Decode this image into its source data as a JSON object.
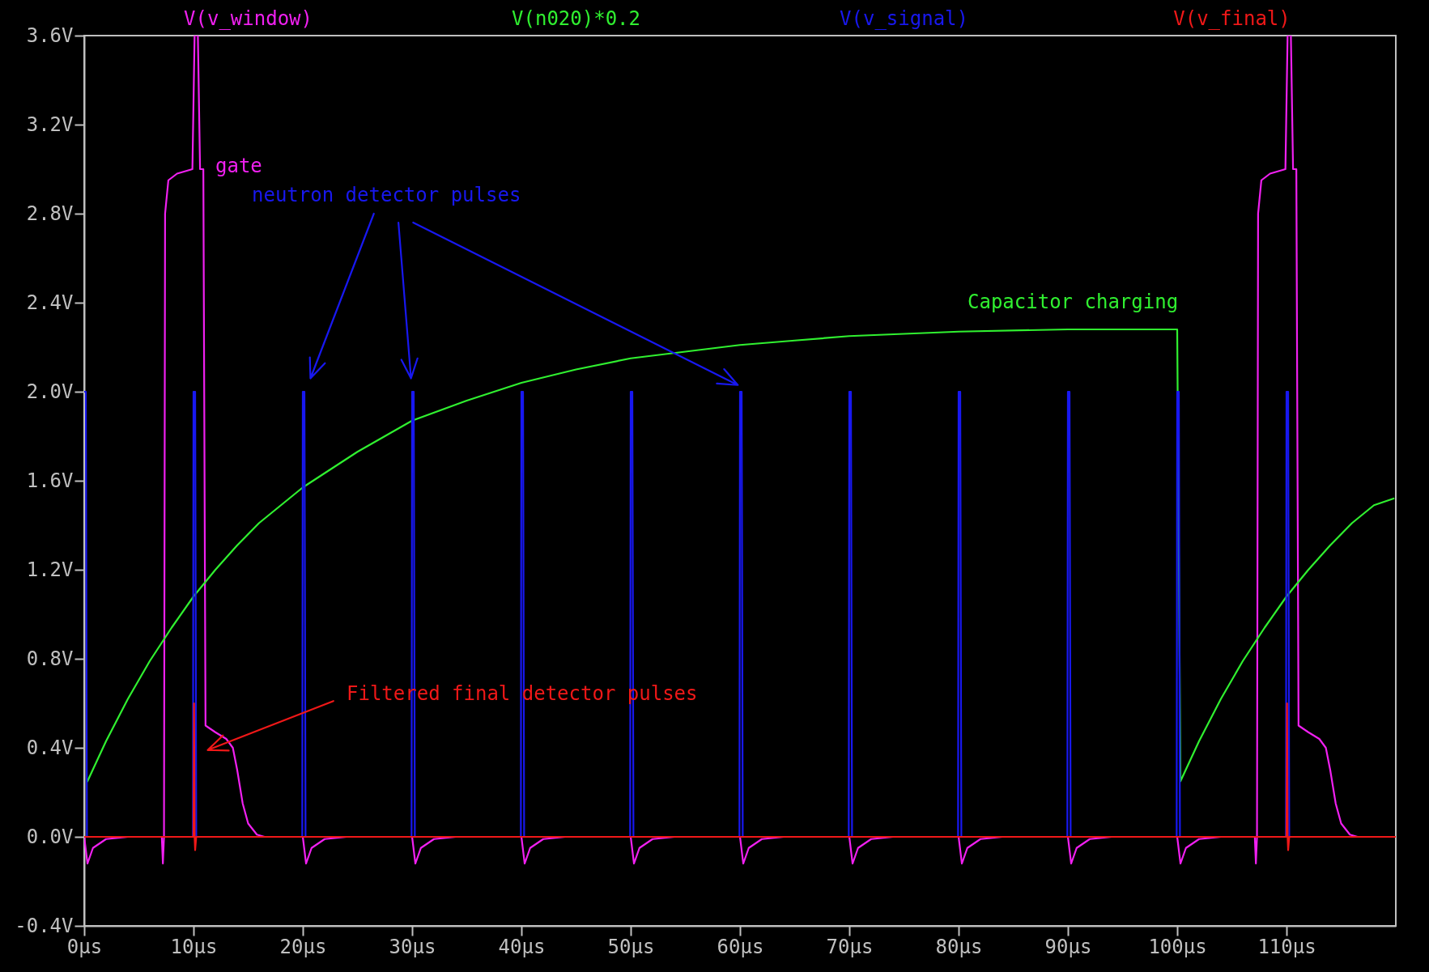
{
  "chart_data": {
    "type": "line",
    "legend": "top",
    "grid": false,
    "line_style": "solid",
    "marker": "none",
    "xlim": [
      0,
      120
    ],
    "ylim": [
      -0.4,
      3.6
    ],
    "xticks": [
      {
        "value": 0,
        "label": "0µs"
      },
      {
        "value": 10,
        "label": "10µs"
      },
      {
        "value": 20,
        "label": "20µs"
      },
      {
        "value": 30,
        "label": "30µs"
      },
      {
        "value": 40,
        "label": "40µs"
      },
      {
        "value": 50,
        "label": "50µs"
      },
      {
        "value": 60,
        "label": "60µs"
      },
      {
        "value": 70,
        "label": "70µs"
      },
      {
        "value": 80,
        "label": "80µs"
      },
      {
        "value": 90,
        "label": "90µs"
      },
      {
        "value": 100,
        "label": "100µs"
      },
      {
        "value": 110,
        "label": "110µs"
      }
    ],
    "yticks": [
      {
        "value": -0.4,
        "label": "-0.4V"
      },
      {
        "value": 0,
        "label": "0.0V"
      },
      {
        "value": 0.4,
        "label": "0.4V"
      },
      {
        "value": 0.8,
        "label": "0.8V"
      },
      {
        "value": 1.2,
        "label": "1.2V"
      },
      {
        "value": 1.6,
        "label": "1.6V"
      },
      {
        "value": 2,
        "label": "2.0V"
      },
      {
        "value": 2.4,
        "label": "2.4V"
      },
      {
        "value": 2.8,
        "label": "2.8V"
      },
      {
        "value": 3.2,
        "label": "3.2V"
      },
      {
        "value": 3.6,
        "label": "3.6V"
      }
    ],
    "series": [
      {
        "name": "V(v_window)",
        "color": "#f020f0",
        "x": [
          0,
          0.3,
          0.8,
          2,
          4,
          7.1,
          7.2,
          7.3,
          7.4,
          7.7,
          8.5,
          9.9,
          10.1,
          10.4,
          10.6,
          10.9,
          11.1,
          12,
          13,
          13.6,
          14,
          14.5,
          15,
          15.8,
          16.5,
          20,
          20.3,
          20.8,
          22,
          24,
          30,
          30.3,
          30.8,
          32,
          34,
          40,
          40.3,
          40.8,
          42,
          44,
          50,
          50.3,
          50.8,
          52,
          54,
          60,
          60.3,
          60.8,
          62,
          64,
          70,
          70.3,
          70.8,
          72,
          74,
          80,
          80.3,
          80.8,
          82,
          84,
          90,
          90.3,
          90.8,
          92,
          94,
          100,
          100.3,
          100.8,
          102,
          104,
          107.1,
          107.2,
          107.3,
          107.4,
          107.7,
          108.5,
          109.9,
          110.1,
          110.4,
          110.6,
          110.9,
          111.1,
          112,
          113,
          113.6,
          114,
          114.5,
          115,
          115.8,
          116.5,
          120
        ],
        "values": [
          0,
          -0.12,
          -0.05,
          -0.01,
          0,
          0,
          -0.12,
          0,
          2.8,
          2.95,
          2.98,
          3,
          3.6,
          3.6,
          3,
          3,
          0.5,
          0.47,
          0.44,
          0.4,
          0.3,
          0.15,
          0.06,
          0.01,
          0,
          0,
          -0.12,
          -0.05,
          -0.01,
          0,
          0,
          -0.12,
          -0.05,
          -0.01,
          0,
          0,
          -0.12,
          -0.05,
          -0.01,
          0,
          0,
          -0.12,
          -0.05,
          -0.01,
          0,
          0,
          -0.12,
          -0.05,
          -0.01,
          0,
          0,
          -0.12,
          -0.05,
          -0.01,
          0,
          0,
          -0.12,
          -0.05,
          -0.01,
          0,
          0,
          -0.12,
          -0.05,
          -0.01,
          0,
          0,
          -0.12,
          -0.05,
          -0.01,
          0,
          0,
          -0.12,
          0,
          2.8,
          2.95,
          2.98,
          3,
          3.6,
          3.6,
          3,
          3,
          0.5,
          0.47,
          0.44,
          0.4,
          0.3,
          0.15,
          0.06,
          0.01,
          0,
          0
        ]
      },
      {
        "name": "V(n020)*0.2",
        "color": "#30f030",
        "x": [
          0.3,
          2,
          4,
          6,
          8,
          10,
          12,
          14,
          16,
          18,
          20,
          25,
          30,
          35,
          40,
          45,
          50,
          55,
          60,
          65,
          70,
          75,
          80,
          90,
          100,
          100.3,
          102,
          104,
          106,
          108,
          110,
          112,
          114,
          116,
          118,
          119.8
        ],
        "values": [
          0.25,
          0.43,
          0.62,
          0.79,
          0.94,
          1.08,
          1.2,
          1.31,
          1.41,
          1.49,
          1.57,
          1.73,
          1.87,
          1.96,
          2.04,
          2.1,
          2.15,
          2.18,
          2.21,
          2.23,
          2.25,
          2.26,
          2.27,
          2.28,
          2.28,
          0.25,
          0.43,
          0.62,
          0.79,
          0.94,
          1.08,
          1.2,
          1.31,
          1.41,
          1.49,
          1.52
        ]
      },
      {
        "name": "V(v_signal)",
        "color": "#1818f0",
        "x": [
          0,
          0.15,
          0.25,
          9.95,
          10,
          10.15,
          10.25,
          19.95,
          20,
          20.15,
          20.25,
          29.95,
          30,
          30.15,
          30.25,
          39.95,
          40,
          40.15,
          40.25,
          49.95,
          50,
          50.15,
          50.25,
          59.95,
          60,
          60.15,
          60.25,
          69.95,
          70,
          70.15,
          70.25,
          79.95,
          80,
          80.15,
          80.25,
          89.95,
          90,
          90.15,
          90.25,
          99.95,
          100,
          100.15,
          100.25,
          109.95,
          110,
          110.15,
          110.25,
          120
        ],
        "values": [
          2,
          2,
          0,
          0,
          2,
          2,
          0,
          0,
          2,
          2,
          0,
          0,
          2,
          2,
          0,
          0,
          2,
          2,
          0,
          0,
          2,
          2,
          0,
          0,
          2,
          2,
          0,
          0,
          2,
          2,
          0,
          0,
          2,
          2,
          0,
          0,
          2,
          2,
          0,
          0,
          2,
          2,
          0,
          0,
          2,
          2,
          0,
          0
        ]
      },
      {
        "name": "V(v_final)",
        "color": "#f01818",
        "x": [
          0,
          10,
          10.05,
          10.1,
          10.15,
          10.25,
          110,
          110.05,
          110.1,
          110.15,
          110.25,
          120
        ],
        "values": [
          0,
          0,
          0.6,
          0,
          -0.06,
          0,
          0,
          0.6,
          0,
          -0.06,
          0,
          0
        ]
      }
    ],
    "annotations": [
      "gate",
      "neutron detector pulses",
      "Capacitor charging",
      "Filtered final detector pulses"
    ]
  }
}
